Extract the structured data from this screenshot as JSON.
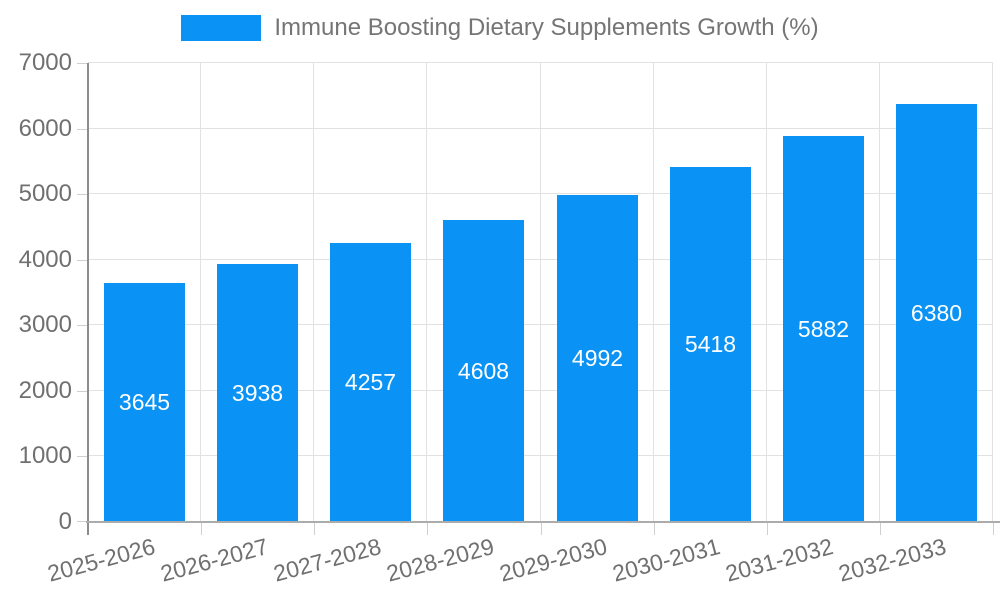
{
  "chart_data": {
    "type": "bar",
    "title": "Immune Boosting Dietary Supplements Growth (%)",
    "categories": [
      "2025-2026",
      "2026-2027",
      "2027-2028",
      "2028-2029",
      "2029-2030",
      "2030-2031",
      "2031-2032",
      "2032-2033"
    ],
    "values": [
      3645,
      3938,
      4257,
      4608,
      4992,
      5418,
      5882,
      6380
    ],
    "series": [
      {
        "name": "Immune Boosting Dietary Supplements Growth (%)",
        "values": [
          3645,
          3938,
          4257,
          4608,
          4992,
          5418,
          5882,
          6380
        ]
      }
    ],
    "xlabel": "",
    "ylabel": "",
    "ylim": [
      0,
      7000
    ],
    "ytick_step": 1000,
    "yticks": [
      0,
      1000,
      2000,
      3000,
      4000,
      5000,
      6000,
      7000
    ],
    "grid": true,
    "legend_position": "top",
    "bar_labels_visible": true
  },
  "legend": {
    "label": "Immune Boosting Dietary Supplements Growth (%)"
  },
  "colors": {
    "bar": "#0a93f5",
    "bar_label_text": "#ffffff",
    "grid": "#e2e2e2",
    "axis_y": "#8c8c8c",
    "axis_x": "#acacac",
    "tick": "#cfcfcf",
    "text": "#707070",
    "legend_text": "#757575",
    "background": "#ffffff"
  }
}
